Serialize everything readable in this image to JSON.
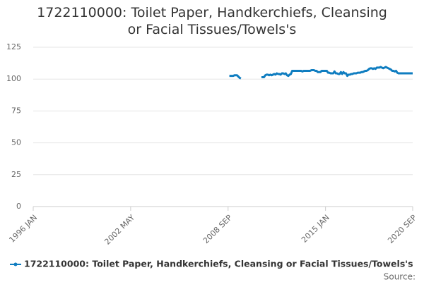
{
  "chart_data": {
    "type": "line",
    "title": "1722110000: Toilet Paper, Handkerchiefs, Cleansing or Facial Tissues/Towels's",
    "source": "Source:",
    "categories": [
      "1996 JAN",
      null,
      null,
      null,
      null,
      null,
      null,
      null,
      null,
      null,
      null,
      null,
      null,
      null,
      null,
      null,
      null,
      null,
      null,
      null,
      null,
      null,
      null,
      null,
      null,
      null,
      null,
      null,
      null,
      null,
      null,
      null,
      null,
      null,
      null,
      null,
      null,
      null,
      null,
      null,
      null,
      null,
      null,
      null,
      null,
      null,
      null,
      null,
      null,
      null,
      null,
      null,
      null,
      null,
      null,
      null,
      null,
      null,
      null,
      null,
      null,
      null,
      null,
      null,
      null,
      null,
      null,
      null,
      null,
      null,
      null,
      null,
      null,
      null,
      null,
      null,
      "2002 MAY",
      null,
      null,
      null,
      null,
      null,
      null,
      null,
      null,
      null,
      null,
      null,
      null,
      null,
      null,
      null,
      null,
      null,
      null,
      null,
      null,
      null,
      null,
      null,
      null,
      null,
      null,
      null,
      null,
      null,
      null,
      null,
      null,
      null,
      null,
      null,
      null,
      null,
      null,
      null,
      null,
      null,
      null,
      null,
      null,
      null,
      null,
      null,
      null,
      null,
      null,
      null,
      null,
      null,
      null,
      null,
      null,
      null,
      null,
      null,
      null,
      null,
      null,
      null,
      null,
      null,
      null,
      null,
      null,
      null,
      null,
      null,
      null,
      null,
      null,
      null,
      "2008 SEP",
      null,
      null,
      null,
      null,
      null,
      null,
      null,
      null,
      null,
      null,
      null,
      null,
      null,
      null,
      null,
      null,
      null,
      null,
      null,
      null,
      null,
      null,
      null,
      null,
      null,
      null,
      null,
      null,
      null,
      null,
      null,
      null,
      null,
      null,
      null,
      null,
      null,
      null,
      null,
      null,
      null,
      null,
      null,
      null,
      null,
      null,
      null,
      null,
      null,
      null,
      null,
      null,
      null,
      null,
      null,
      null,
      null,
      null,
      null,
      null,
      null,
      null,
      null,
      null,
      null,
      null,
      null,
      null,
      null,
      null,
      null,
      null,
      null,
      null,
      null,
      "2015 JAN",
      null,
      null,
      null,
      null,
      null,
      null,
      null,
      null,
      null,
      null,
      null,
      null,
      null,
      null,
      null,
      null,
      null,
      null,
      null,
      null,
      null,
      null,
      null,
      null,
      null,
      null,
      null,
      null,
      null,
      null,
      null,
      null,
      null,
      null,
      null,
      null,
      null,
      null,
      null,
      null,
      null,
      null,
      null,
      null,
      null,
      null,
      null,
      null,
      null,
      null,
      null,
      null,
      null,
      null,
      null,
      null,
      null,
      null,
      null,
      null,
      null,
      null,
      null,
      null,
      null,
      null,
      null,
      "2020 SEP"
    ],
    "series": [
      {
        "name": "1722110000: Toilet Paper, Handkerchiefs, Cleansing or Facial Tissues/Towels's",
        "color": "#0f7dc0",
        "values": [
          null,
          null,
          null,
          null,
          null,
          null,
          null,
          null,
          null,
          null,
          null,
          null,
          null,
          null,
          null,
          null,
          null,
          null,
          null,
          null,
          null,
          null,
          null,
          null,
          null,
          null,
          null,
          null,
          null,
          null,
          null,
          null,
          null,
          null,
          null,
          null,
          null,
          null,
          null,
          null,
          null,
          null,
          null,
          null,
          null,
          null,
          null,
          null,
          null,
          null,
          null,
          null,
          null,
          null,
          null,
          null,
          null,
          null,
          null,
          null,
          null,
          null,
          null,
          null,
          null,
          null,
          null,
          null,
          null,
          null,
          null,
          null,
          null,
          null,
          null,
          null,
          null,
          null,
          null,
          null,
          null,
          null,
          null,
          null,
          null,
          null,
          null,
          null,
          null,
          null,
          null,
          null,
          null,
          null,
          null,
          null,
          null,
          null,
          null,
          null,
          null,
          null,
          null,
          null,
          null,
          null,
          null,
          null,
          null,
          null,
          null,
          null,
          null,
          null,
          null,
          null,
          null,
          null,
          null,
          null,
          null,
          null,
          null,
          null,
          null,
          null,
          null,
          null,
          null,
          null,
          null,
          null,
          null,
          null,
          null,
          null,
          null,
          null,
          null,
          null,
          null,
          null,
          null,
          null,
          null,
          null,
          null,
          null,
          null,
          null,
          null,
          null,
          null,
          102.5,
          102.5,
          102.5,
          102.5,
          103,
          103,
          103,
          102,
          101,
          100.5,
          null,
          null,
          null,
          null,
          null,
          null,
          null,
          null,
          null,
          null,
          null,
          null,
          null,
          null,
          null,
          101.5,
          101.5,
          101.5,
          103,
          103.5,
          103.5,
          103,
          103.5,
          103,
          103.5,
          104,
          103.5,
          104.5,
          104,
          104,
          103.5,
          104.5,
          104.5,
          104,
          104.5,
          103,
          102.5,
          103.5,
          104,
          106.5,
          106.5,
          106.5,
          106.5,
          106.5,
          106.5,
          106.5,
          106.5,
          106,
          106.5,
          106.5,
          106.5,
          106.5,
          106.5,
          106.5,
          107,
          107,
          107,
          106.5,
          106.5,
          105.5,
          105.5,
          105.5,
          106.5,
          106.5,
          106.5,
          106.5,
          106.5,
          105,
          105,
          104.5,
          104.5,
          104.5,
          106,
          104.5,
          104.5,
          104,
          104,
          105.5,
          104,
          105.5,
          104.5,
          104.5,
          102.5,
          103.5,
          103.5,
          104,
          104,
          104.5,
          104.5,
          104.5,
          105,
          105,
          105,
          105.5,
          105.5,
          106,
          106.5,
          106.5,
          107,
          108,
          108.5,
          108.5,
          108,
          108.5,
          108,
          109,
          109,
          109,
          109.5,
          109,
          108.5,
          109,
          109.5,
          109,
          108.5,
          108,
          107.5,
          106.5,
          106.5,
          106,
          106.5,
          105,
          104.5,
          104.5,
          104.5,
          104.5,
          104.5,
          104.5,
          104.5,
          104.5,
          104.5,
          104.5,
          104.5,
          104.5
        ]
      }
    ],
    "ylim": [
      0,
      125
    ],
    "yticks": [
      0,
      25,
      50,
      75,
      100,
      125
    ],
    "grid": true,
    "legend": "bottom"
  }
}
